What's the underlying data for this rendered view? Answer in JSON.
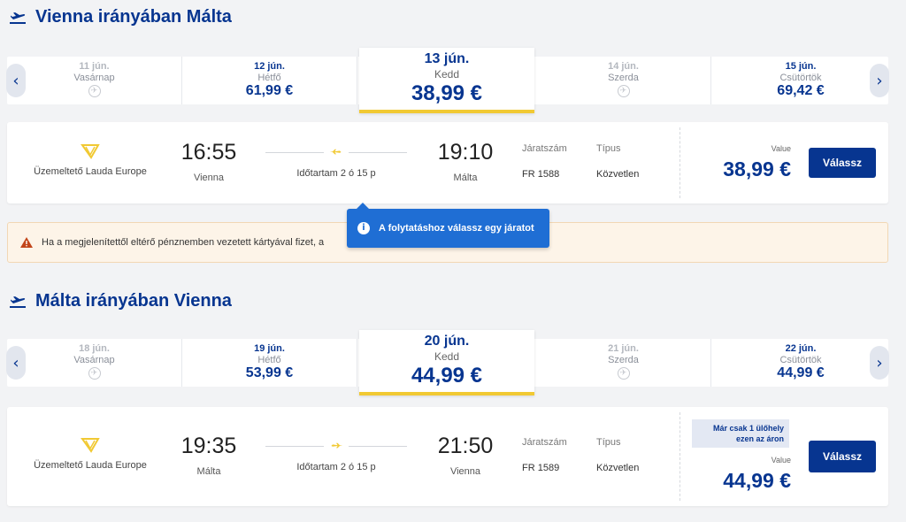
{
  "colors": {
    "brand_blue": "#073590",
    "accent_yellow": "#f1c933",
    "info_blue": "#1f6ed4",
    "warning_bg": "#fdf4e8"
  },
  "outbound": {
    "title": "Vienna irányában Málta",
    "title_icon": "plane-takeoff-icon",
    "days": [
      {
        "date": "11 jún.",
        "weekday": "Vasárnap",
        "price": "",
        "no_flight_icon": "no-flight-icon"
      },
      {
        "date": "12 jún.",
        "weekday": "Hétfő",
        "price": "61,99 €"
      },
      {
        "date": "13 jún.",
        "weekday": "Kedd",
        "price": "38,99 €"
      },
      {
        "date": "14 jún.",
        "weekday": "Szerda",
        "price": "",
        "no_flight_icon": "no-flight-icon"
      },
      {
        "date": "15 jún.",
        "weekday": "Csütörtök",
        "price": "69,42 €"
      }
    ],
    "flight": {
      "operator": "Üzemeltető Lauda Europe",
      "dep_time": "16:55",
      "dep_city": "Vienna",
      "arr_time": "19:10",
      "arr_city": "Málta",
      "duration": "Időtartam 2 ó 15 p",
      "flight_no_label": "Járatszám",
      "flight_no": "FR 1588",
      "type_label": "Típus",
      "type": "Közvetlen",
      "fare_label": "Value",
      "price": "38,99 €",
      "button": "Válassz"
    }
  },
  "warning": {
    "text": "Ha a megjelenítettől eltérő pénznemben vezetett kártyával fizet, a",
    "icon": "warning-icon"
  },
  "tooltip": {
    "text": "A folytatáshoz válassz egy járatot",
    "icon": "info-icon"
  },
  "inbound": {
    "title": "Málta irányában Vienna",
    "title_icon": "plane-takeoff-icon",
    "days": [
      {
        "date": "18 jún.",
        "weekday": "Vasárnap",
        "price": "",
        "no_flight_icon": "no-flight-icon"
      },
      {
        "date": "19 jún.",
        "weekday": "Hétfő",
        "price": "53,99 €"
      },
      {
        "date": "20 jún.",
        "weekday": "Kedd",
        "price": "44,99 €"
      },
      {
        "date": "21 jún.",
        "weekday": "Szerda",
        "price": "",
        "no_flight_icon": "no-flight-icon"
      },
      {
        "date": "22 jún.",
        "weekday": "Csütörtök",
        "price": "44,99 €"
      }
    ],
    "flight": {
      "operator": "Üzemeltető Lauda Europe",
      "dep_time": "19:35",
      "dep_city": "Málta",
      "arr_time": "21:50",
      "arr_city": "Vienna",
      "duration": "Időtartam 2 ó 15 p",
      "flight_no_label": "Járatszám",
      "flight_no": "FR 1589",
      "type_label": "Típus",
      "type": "Közvetlen",
      "seats_note": "Már csak 1 ülőhely ezen az áron",
      "fare_label": "Value",
      "price": "44,99 €",
      "button": "Válassz"
    }
  }
}
